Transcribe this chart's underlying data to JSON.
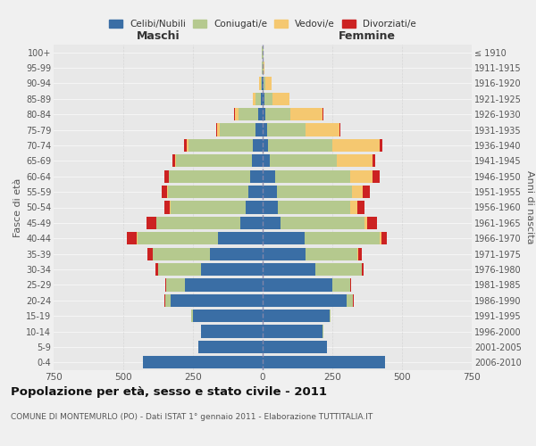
{
  "age_groups": [
    "0-4",
    "5-9",
    "10-14",
    "15-19",
    "20-24",
    "25-29",
    "30-34",
    "35-39",
    "40-44",
    "45-49",
    "50-54",
    "55-59",
    "60-64",
    "65-69",
    "70-74",
    "75-79",
    "80-84",
    "85-89",
    "90-94",
    "95-99",
    "100+"
  ],
  "birth_years": [
    "2006-2010",
    "2001-2005",
    "1996-2000",
    "1991-1995",
    "1986-1990",
    "1981-1985",
    "1976-1980",
    "1971-1975",
    "1966-1970",
    "1961-1965",
    "1956-1960",
    "1951-1955",
    "1946-1950",
    "1941-1945",
    "1936-1940",
    "1931-1935",
    "1926-1930",
    "1921-1925",
    "1916-1920",
    "1911-1915",
    "≤ 1910"
  ],
  "maschi": {
    "celibi": [
      430,
      230,
      220,
      250,
      330,
      280,
      220,
      190,
      160,
      80,
      60,
      50,
      45,
      40,
      35,
      25,
      15,
      5,
      3,
      1,
      1
    ],
    "coniugati": [
      0,
      0,
      2,
      5,
      20,
      65,
      155,
      205,
      290,
      300,
      270,
      290,
      290,
      270,
      230,
      130,
      70,
      20,
      5,
      2,
      1
    ],
    "vedovi": [
      0,
      0,
      0,
      0,
      0,
      0,
      0,
      0,
      1,
      1,
      2,
      3,
      3,
      3,
      8,
      10,
      15,
      10,
      5,
      1,
      0
    ],
    "divorziati": [
      0,
      0,
      0,
      0,
      2,
      3,
      10,
      20,
      35,
      35,
      20,
      20,
      15,
      10,
      8,
      3,
      1,
      0,
      0,
      0,
      0
    ]
  },
  "femmine": {
    "nubili": [
      440,
      230,
      215,
      240,
      300,
      250,
      190,
      155,
      150,
      65,
      55,
      50,
      45,
      25,
      20,
      15,
      10,
      5,
      3,
      1,
      1
    ],
    "coniugate": [
      0,
      0,
      2,
      5,
      25,
      65,
      165,
      185,
      270,
      300,
      260,
      270,
      270,
      240,
      230,
      140,
      90,
      30,
      8,
      2,
      1
    ],
    "vedove": [
      0,
      0,
      0,
      0,
      0,
      0,
      1,
      2,
      5,
      10,
      25,
      40,
      80,
      130,
      170,
      120,
      115,
      60,
      20,
      5,
      2
    ],
    "divorziate": [
      0,
      0,
      0,
      0,
      2,
      3,
      5,
      15,
      20,
      35,
      25,
      25,
      25,
      10,
      8,
      3,
      3,
      1,
      0,
      0,
      0
    ]
  },
  "colors": {
    "celibi": "#3a6ea5",
    "coniugati": "#b5c98e",
    "vedovi": "#f5c870",
    "divorziati": "#cc2222"
  },
  "title": "Popolazione per età, sesso e stato civile - 2011",
  "subtitle": "COMUNE DI MONTEMURLO (PO) - Dati ISTAT 1° gennaio 2011 - Elaborazione TUTTITALIA.IT",
  "xlabel_left": "Maschi",
  "xlabel_right": "Femmine",
  "ylabel_left": "Fasce di età",
  "ylabel_right": "Anni di nascita",
  "xlim": 750,
  "legend_labels": [
    "Celibi/Nubili",
    "Coniugati/e",
    "Vedovi/e",
    "Divorziati/e"
  ],
  "bg_color": "#f0f0f0",
  "plot_bg": "#e8e8e8"
}
